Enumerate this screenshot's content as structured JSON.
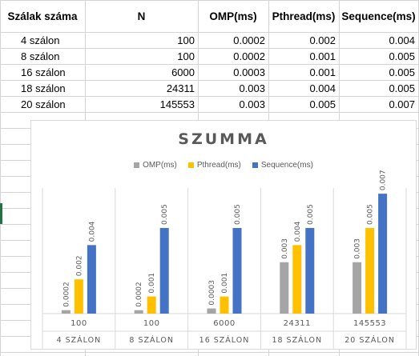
{
  "sheet": {
    "headers": [
      "Szálak száma",
      "N",
      "OMP(ms)",
      "Pthread(ms)",
      "Sequence(ms)"
    ],
    "rows": [
      [
        "4 szálon",
        "100",
        "0.0002",
        "0.002",
        "0.004"
      ],
      [
        "8 szálon",
        "100",
        "0.0002",
        "0.001",
        "0.005"
      ],
      [
        "16 szálon",
        "6000",
        "0.0003",
        "0.001",
        "0.005"
      ],
      [
        "18 szálon",
        "24311",
        "0.003",
        "0.004",
        "0.005"
      ],
      [
        "20 szálon",
        "145553",
        "0.003",
        "0.005",
        "0.007"
      ]
    ]
  },
  "colors": {
    "omp": "#a5a5a5",
    "pthread": "#ffc000",
    "sequence": "#4472c4",
    "axis_text": "#595959",
    "gridline": "#d9d9d9"
  },
  "chart_data": {
    "type": "bar",
    "title": "SZUMMA",
    "categories": [
      "4 SZÁLON",
      "8 SZÁLON",
      "16 SZÁLON",
      "18 SZÁLON",
      "20 SZÁLON"
    ],
    "category_n": [
      "100",
      "100",
      "6000",
      "24311",
      "145553"
    ],
    "series": [
      {
        "name": "OMP(ms)",
        "values": [
          0.0002,
          0.0002,
          0.0003,
          0.003,
          0.003
        ],
        "labels": [
          "0.0002",
          "0.0002",
          "0.0003",
          "0.003",
          "0.003"
        ]
      },
      {
        "name": "Pthread(ms)",
        "values": [
          0.002,
          0.001,
          0.001,
          0.004,
          0.005
        ],
        "labels": [
          "0.002",
          "0.001",
          "0.001",
          "0.004",
          "0.005"
        ]
      },
      {
        "name": "Sequence(ms)",
        "values": [
          0.004,
          0.005,
          0.005,
          0.005,
          0.007
        ],
        "labels": [
          "0.004",
          "0.005",
          "0.005",
          "0.005",
          "0.007"
        ]
      }
    ],
    "ylim": [
      0,
      0.0078
    ],
    "legend": "top",
    "grid": false
  }
}
